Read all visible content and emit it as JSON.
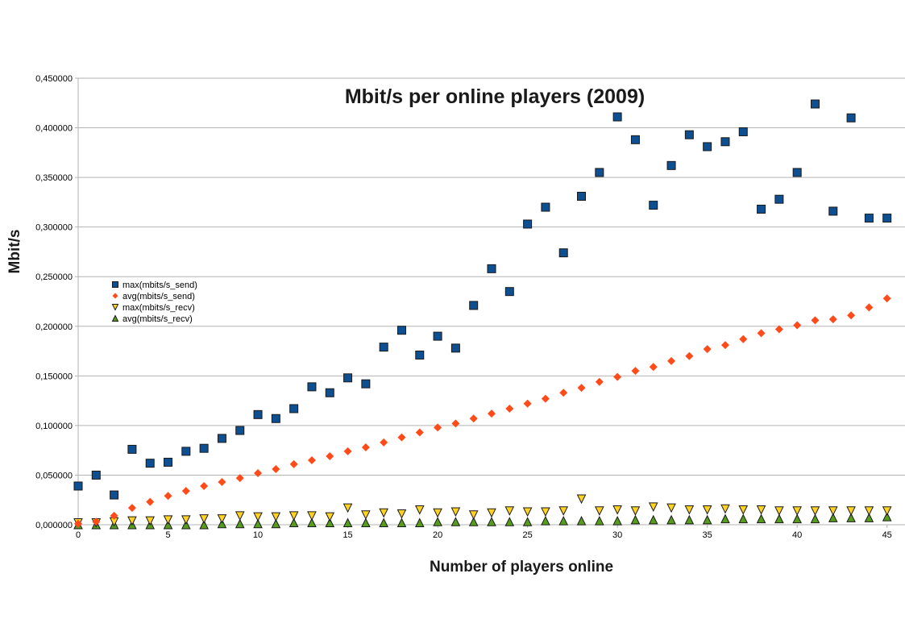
{
  "chart_data": {
    "type": "scatter",
    "title": "Mbit/s per online players (2009)",
    "xlabel": "Number of players online",
    "ylabel": "Mbit/s",
    "xlim": [
      0,
      46
    ],
    "ylim": [
      0,
      0.45
    ],
    "x_ticks": [
      0,
      5,
      10,
      15,
      20,
      25,
      30,
      35,
      40,
      45
    ],
    "x_tick_labels": [
      "0",
      "5",
      "10",
      "15",
      "20",
      "25",
      "30",
      "35",
      "40",
      "45"
    ],
    "y_ticks": [
      0,
      0.05,
      0.1,
      0.15,
      0.2,
      0.25,
      0.3,
      0.35,
      0.4,
      0.45
    ],
    "y_tick_labels": [
      "0,000000",
      "0,050000",
      "0,100000",
      "0,150000",
      "0,200000",
      "0,250000",
      "0,300000",
      "0,350000",
      "0,400000",
      "0,450000"
    ],
    "grid": true,
    "legend_position": "left",
    "x": [
      0,
      1,
      2,
      3,
      4,
      5,
      6,
      7,
      8,
      9,
      10,
      11,
      12,
      13,
      14,
      15,
      16,
      17,
      18,
      19,
      20,
      21,
      22,
      23,
      24,
      25,
      26,
      27,
      28,
      29,
      30,
      31,
      32,
      33,
      34,
      35,
      36,
      37,
      38,
      39,
      40,
      41,
      42,
      43,
      44,
      45
    ],
    "series": [
      {
        "name": "max(mbits/s_send)",
        "marker": "square",
        "color": "#0e4f92",
        "values": [
          0.039,
          0.05,
          0.03,
          0.076,
          0.062,
          0.063,
          0.074,
          0.077,
          0.087,
          0.095,
          0.111,
          0.107,
          0.117,
          0.139,
          0.133,
          0.148,
          0.142,
          0.179,
          0.196,
          0.171,
          0.19,
          0.178,
          0.221,
          0.258,
          0.235,
          0.303,
          0.32,
          0.274,
          0.331,
          0.355,
          0.411,
          0.388,
          0.322,
          0.362,
          0.393,
          0.381,
          0.386,
          0.396,
          0.318,
          0.328,
          0.355,
          0.424,
          0.316,
          0.41,
          0.309,
          0.309
        ]
      },
      {
        "name": "avg(mbits/s_send)",
        "marker": "diamond",
        "color": "#ff4b1a",
        "values": [
          0.001,
          0.003,
          0.009,
          0.017,
          0.023,
          0.029,
          0.034,
          0.039,
          0.043,
          0.047,
          0.052,
          0.056,
          0.061,
          0.065,
          0.069,
          0.074,
          0.078,
          0.083,
          0.088,
          0.093,
          0.098,
          0.102,
          0.107,
          0.112,
          0.117,
          0.122,
          0.127,
          0.133,
          0.138,
          0.144,
          0.149,
          0.155,
          0.159,
          0.165,
          0.17,
          0.177,
          0.181,
          0.187,
          0.193,
          0.197,
          0.201,
          0.206,
          0.207,
          0.211,
          0.219,
          0.228
        ]
      },
      {
        "name": "max(mbits/s_recv)",
        "marker": "triangle-down",
        "color": "#ffd320",
        "values": [
          0.002,
          0.002,
          0.003,
          0.004,
          0.004,
          0.005,
          0.005,
          0.006,
          0.006,
          0.009,
          0.008,
          0.008,
          0.009,
          0.009,
          0.008,
          0.017,
          0.01,
          0.012,
          0.011,
          0.015,
          0.012,
          0.013,
          0.01,
          0.012,
          0.014,
          0.013,
          0.013,
          0.014,
          0.026,
          0.014,
          0.015,
          0.014,
          0.018,
          0.017,
          0.015,
          0.015,
          0.016,
          0.015,
          0.015,
          0.014,
          0.014,
          0.014,
          0.014,
          0.014,
          0.014,
          0.014
        ]
      },
      {
        "name": "avg(mbits/s_recv)",
        "marker": "triangle-up",
        "color": "#579d1c",
        "values": [
          0.0,
          0.0,
          0.0,
          0.0,
          0.0,
          0.0,
          0.0,
          0.0,
          0.001,
          0.001,
          0.001,
          0.001,
          0.002,
          0.002,
          0.002,
          0.002,
          0.002,
          0.002,
          0.002,
          0.002,
          0.003,
          0.003,
          0.003,
          0.003,
          0.003,
          0.003,
          0.004,
          0.004,
          0.004,
          0.004,
          0.004,
          0.005,
          0.005,
          0.005,
          0.005,
          0.005,
          0.006,
          0.006,
          0.006,
          0.006,
          0.006,
          0.006,
          0.007,
          0.007,
          0.007,
          0.008
        ]
      }
    ]
  }
}
